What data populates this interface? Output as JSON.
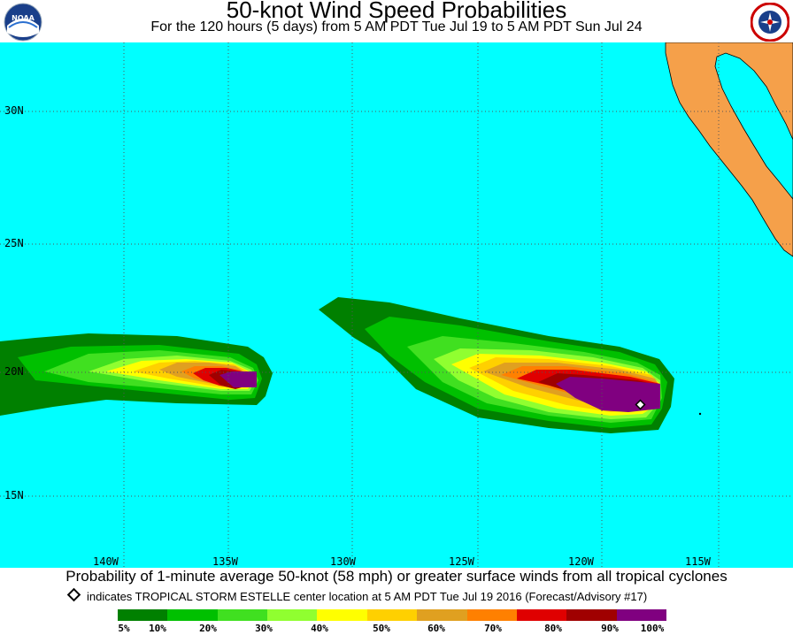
{
  "header": {
    "title": "50-knot Wind Speed Probabilities",
    "subtitle": "For the 120 hours (5 days) from 5 AM PDT Tue Jul 19 to 5 AM PDT Sun Jul 24",
    "left_logo": "noaa-logo-icon",
    "right_logo": "nws-logo-icon"
  },
  "map": {
    "ocean_color": "#00ffff",
    "land_color": "#f5a04a",
    "lat_labels": [
      "30N",
      "25N",
      "20N",
      "15N"
    ],
    "lon_labels": [
      "140W",
      "135W",
      "130W",
      "125W",
      "120W",
      "115W"
    ]
  },
  "footer": {
    "caption": "Probability of 1-minute average 50-knot (58 mph) or greater surface winds from all tropical cyclones",
    "storm_note": "indicates TROPICAL STORM ESTELLE center location at 5 AM PDT Tue Jul 19 2016 (Forecast/Advisory #17)"
  },
  "legend": {
    "colors": [
      "#008000",
      "#00c000",
      "#40e020",
      "#90ff30",
      "#ffff00",
      "#ffd000",
      "#e0a020",
      "#ff8000",
      "#e00000",
      "#a00000",
      "#800080"
    ],
    "ticks": [
      "5%",
      "10%",
      "20%",
      "30%",
      "40%",
      "50%",
      "60%",
      "70%",
      "80%",
      "90%",
      "100%"
    ]
  }
}
